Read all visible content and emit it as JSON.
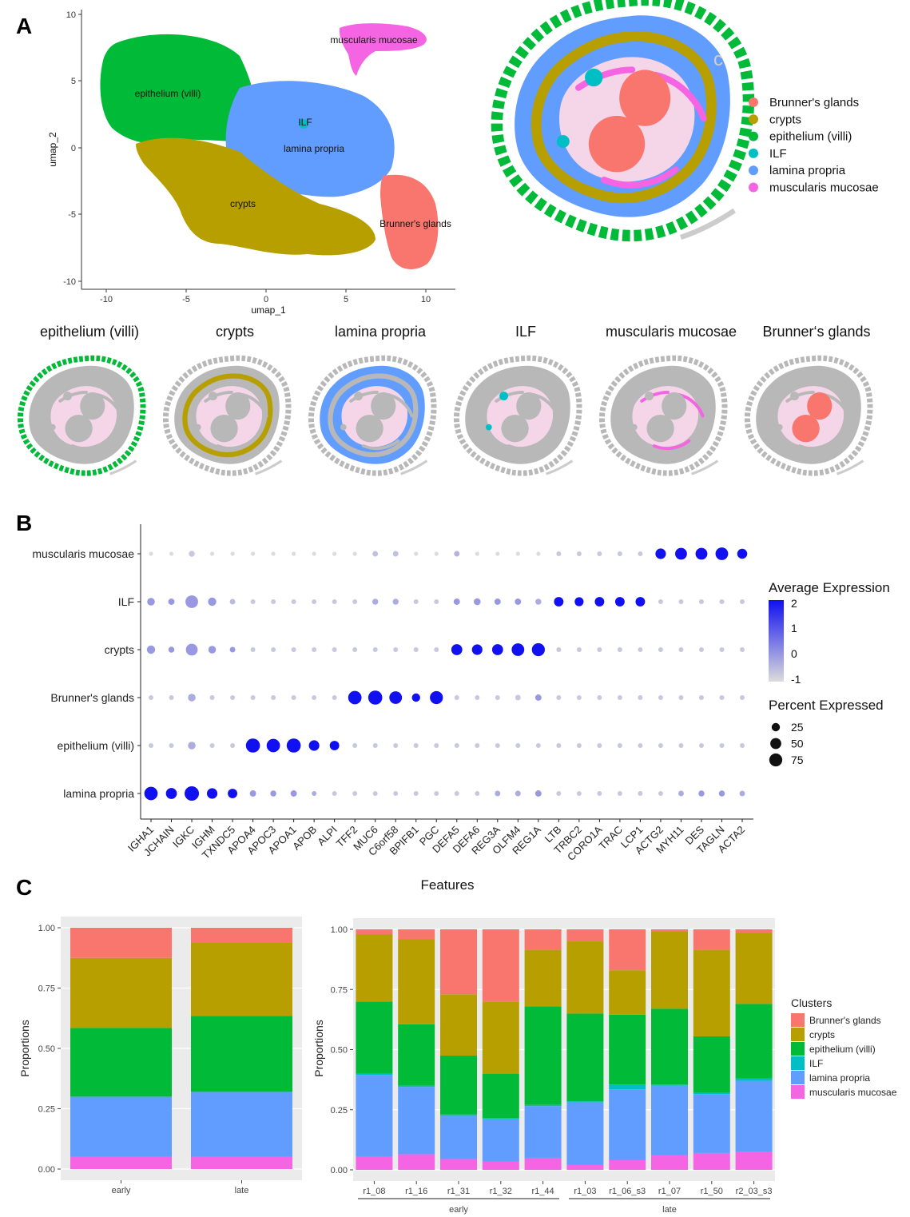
{
  "colors": {
    "Brunner's glands": "#f8766d",
    "crypts": "#b79f00",
    "epithelium (villi)": "#00ba38",
    "ILF": "#00bfc4",
    "lamina propria": "#619cff",
    "muscularis mucosae": "#f564e3",
    "tissue_grey": "#b8b8b8",
    "tissue_pink": "#f5d6e8",
    "panel_bg": "#ebebeb"
  },
  "panels": {
    "a": "A",
    "b": "B",
    "c": "C"
  },
  "umap": {
    "xlabel": "umap_1",
    "ylabel": "umap_2",
    "x_ticks": [
      "-10",
      "-5",
      "0",
      "5",
      "10"
    ],
    "y_ticks": [
      "10",
      "5",
      "0",
      "-5",
      "-10"
    ],
    "clusters": [
      {
        "name": "epithelium (villi)",
        "color_key": "epithelium (villi)"
      },
      {
        "name": "ILF",
        "color_key": "ILF"
      },
      {
        "name": "lamina propria",
        "color_key": "lamina propria"
      },
      {
        "name": "crypts",
        "color_key": "crypts"
      },
      {
        "name": "Brunner's glands",
        "color_key": "Brunner's glands"
      },
      {
        "name": "muscularis mucosae",
        "color_key": "muscularis mucosae"
      }
    ]
  },
  "spatial_legend": [
    "Brunner's glands",
    "crypts",
    "epithelium (villi)",
    "ILF",
    "lamina propria",
    "muscularis mucosae"
  ],
  "small_maps": [
    "epithelium (villi)",
    "crypts",
    "lamina propria",
    "ILF",
    "muscularis mucosae",
    "Brunner‘s glands"
  ],
  "chart_data": [
    {
      "type": "scatter",
      "subtype": "dotplot",
      "xlabel": "Features",
      "genes": [
        "IGHA1",
        "JCHAIN",
        "IGKC",
        "IGHM",
        "TXNDC5",
        "APOA4",
        "APOC3",
        "APOA1",
        "APOB",
        "ALPI",
        "TFF2",
        "MUC6",
        "C6orf58",
        "BPIFB1",
        "PGC",
        "DEFA5",
        "DEFA6",
        "REG3A",
        "OLFM4",
        "REG1A",
        "LTB",
        "TRBC2",
        "CORO1A",
        "TRAC",
        "LCP1",
        "ACTG2",
        "MYH11",
        "DES",
        "TAGLN",
        "ACTA2"
      ],
      "rows": [
        "muscularis mucosae",
        "ILF",
        "crypts",
        "Brunner's glands",
        "epithelium (villi)",
        "lamina propria"
      ],
      "avg_expression": {
        "muscularis mucosae": [
          -1,
          -1,
          -0.7,
          -1,
          -1,
          -1,
          -1,
          -1,
          -1,
          -1,
          -1,
          -0.6,
          -0.6,
          -1,
          -1,
          -0.4,
          -1,
          -1,
          -1,
          -1,
          -0.7,
          -0.7,
          -0.7,
          -0.7,
          -0.7,
          2,
          2,
          2,
          2,
          2
        ],
        "ILF": [
          0,
          0,
          0,
          0,
          -0.5,
          -0.7,
          -0.7,
          -0.7,
          -0.7,
          -0.7,
          -0.7,
          -0.3,
          -0.3,
          -0.7,
          -0.7,
          0,
          0,
          0,
          0,
          -0.3,
          2,
          2,
          2,
          2,
          2,
          -0.7,
          -0.7,
          -0.7,
          -0.7,
          -0.7
        ],
        "crypts": [
          0,
          0,
          0,
          0,
          0,
          -0.7,
          -0.7,
          -0.7,
          -0.7,
          -0.7,
          -0.7,
          -0.7,
          -0.7,
          -0.7,
          -0.7,
          2,
          2,
          2,
          2,
          2,
          -0.7,
          -0.7,
          -0.7,
          -0.7,
          -0.7,
          -0.7,
          -0.7,
          -0.7,
          -0.7,
          -0.7
        ],
        "Brunner's glands": [
          -0.7,
          -0.7,
          -0.3,
          -0.7,
          -0.7,
          -0.7,
          -0.7,
          -0.7,
          -0.7,
          -0.7,
          2,
          2,
          2,
          2,
          2,
          -0.7,
          -0.7,
          -0.7,
          -0.7,
          0,
          -0.7,
          -0.7,
          -0.7,
          -0.7,
          -0.7,
          -0.7,
          -0.7,
          -0.7,
          -0.7,
          -0.7
        ],
        "epithelium (villi)": [
          -0.7,
          -0.7,
          -0.3,
          -0.7,
          -0.7,
          2,
          2,
          2,
          2,
          2,
          -0.7,
          -0.7,
          -0.7,
          -0.7,
          -0.7,
          -0.7,
          -0.7,
          -0.7,
          -0.7,
          -0.7,
          -0.7,
          -0.7,
          -0.7,
          -0.7,
          -0.7,
          -0.7,
          -0.7,
          -0.7,
          -0.7,
          -0.7
        ],
        "lamina propria": [
          2,
          2,
          2,
          2,
          2,
          0,
          0,
          0,
          -0.3,
          -0.7,
          -0.7,
          -0.7,
          -0.7,
          -0.7,
          -0.7,
          -0.7,
          -0.7,
          -0.3,
          -0.3,
          0,
          -0.7,
          -0.7,
          -0.7,
          -0.7,
          -0.7,
          -0.7,
          -0.3,
          0,
          0,
          -0.3
        ]
      },
      "pct_expressed": {
        "muscularis mucosae": [
          3,
          3,
          10,
          3,
          3,
          3,
          3,
          3,
          3,
          3,
          3,
          8,
          8,
          3,
          3,
          8,
          3,
          3,
          3,
          3,
          5,
          5,
          5,
          5,
          5,
          45,
          60,
          60,
          70,
          40
        ],
        "ILF": [
          20,
          12,
          70,
          25,
          8,
          5,
          5,
          5,
          5,
          5,
          5,
          10,
          10,
          5,
          5,
          12,
          15,
          12,
          12,
          10,
          35,
          30,
          35,
          35,
          35,
          5,
          5,
          5,
          5,
          5
        ],
        "crypts": [
          25,
          10,
          60,
          20,
          8,
          5,
          5,
          5,
          5,
          5,
          5,
          5,
          5,
          5,
          5,
          50,
          45,
          50,
          70,
          75,
          5,
          5,
          5,
          5,
          5,
          5,
          5,
          5,
          5,
          5
        ],
        "Brunner's glands": [
          5,
          5,
          20,
          5,
          5,
          5,
          5,
          5,
          5,
          5,
          80,
          90,
          70,
          25,
          75,
          5,
          5,
          5,
          8,
          12,
          5,
          5,
          5,
          5,
          5,
          5,
          5,
          5,
          5,
          5
        ],
        "epithelium (villi)": [
          5,
          5,
          20,
          5,
          5,
          90,
          80,
          90,
          45,
          35,
          5,
          5,
          5,
          5,
          5,
          5,
          5,
          5,
          5,
          5,
          5,
          5,
          5,
          5,
          5,
          5,
          5,
          5,
          5,
          5
        ],
        "lamina propria": [
          80,
          50,
          95,
          45,
          35,
          12,
          10,
          12,
          5,
          5,
          5,
          5,
          5,
          5,
          5,
          5,
          5,
          8,
          8,
          12,
          5,
          5,
          5,
          5,
          5,
          5,
          8,
          10,
          10,
          8
        ]
      },
      "color_legend_title": "Average Expression",
      "color_ticks": [
        "2",
        "1",
        "0",
        "-1"
      ],
      "size_legend_title": "Percent Expressed",
      "size_ticks": [
        "25",
        "50",
        "75"
      ]
    },
    {
      "type": "bar",
      "stacked": true,
      "ylabel": "Proportions",
      "categories": [
        "early",
        "late"
      ],
      "yticks": [
        "1.00",
        "0.75",
        "0.50",
        "0.25",
        "0.00"
      ],
      "series": [
        {
          "name": "muscularis mucosae",
          "values": [
            0.05,
            0.05
          ]
        },
        {
          "name": "lamina propria",
          "values": [
            0.25,
            0.27
          ]
        },
        {
          "name": "ILF",
          "values": [
            0.0,
            0.0
          ]
        },
        {
          "name": "epithelium (villi)",
          "values": [
            0.285,
            0.315
          ]
        },
        {
          "name": "crypts",
          "values": [
            0.29,
            0.305
          ]
        },
        {
          "name": "Brunner's glands",
          "values": [
            0.125,
            0.06
          ]
        }
      ]
    },
    {
      "type": "bar",
      "stacked": true,
      "ylabel": "Proportions",
      "categories": [
        "r1_08",
        "r1_16",
        "r1_31",
        "r1_32",
        "r1_44",
        "r1_03",
        "r1_06_s3",
        "r1_07",
        "r1_50",
        "r2_03_s3"
      ],
      "groups": [
        {
          "name": "early",
          "from": 0,
          "to": 4
        },
        {
          "name": "late",
          "from": 5,
          "to": 9
        }
      ],
      "yticks": [
        "1.00",
        "0.75",
        "0.50",
        "0.25",
        "0.00"
      ],
      "legend_title": "Clusters",
      "legend": [
        "Brunner's glands",
        "crypts",
        "epithelium (villi)",
        "ILF",
        "lamina propria",
        "muscularis mucosae"
      ],
      "series": [
        {
          "name": "muscularis mucosae",
          "values": [
            0.055,
            0.065,
            0.045,
            0.035,
            0.05,
            0.02,
            0.04,
            0.06,
            0.07,
            0.075
          ]
        },
        {
          "name": "lamina propria",
          "values": [
            0.34,
            0.28,
            0.18,
            0.175,
            0.215,
            0.26,
            0.295,
            0.29,
            0.245,
            0.295
          ]
        },
        {
          "name": "ILF",
          "values": [
            0.005,
            0.005,
            0.005,
            0.005,
            0.005,
            0.005,
            0.02,
            0.005,
            0.005,
            0.01
          ]
        },
        {
          "name": "epithelium (villi)",
          "values": [
            0.3,
            0.255,
            0.245,
            0.185,
            0.41,
            0.365,
            0.29,
            0.315,
            0.235,
            0.31
          ]
        },
        {
          "name": "crypts",
          "values": [
            0.28,
            0.355,
            0.255,
            0.3,
            0.235,
            0.3,
            0.185,
            0.32,
            0.36,
            0.295
          ]
        },
        {
          "name": "Brunner's glands",
          "values": [
            0.02,
            0.04,
            0.27,
            0.3,
            0.085,
            0.05,
            0.17,
            0.01,
            0.085,
            0.015
          ]
        }
      ]
    }
  ]
}
